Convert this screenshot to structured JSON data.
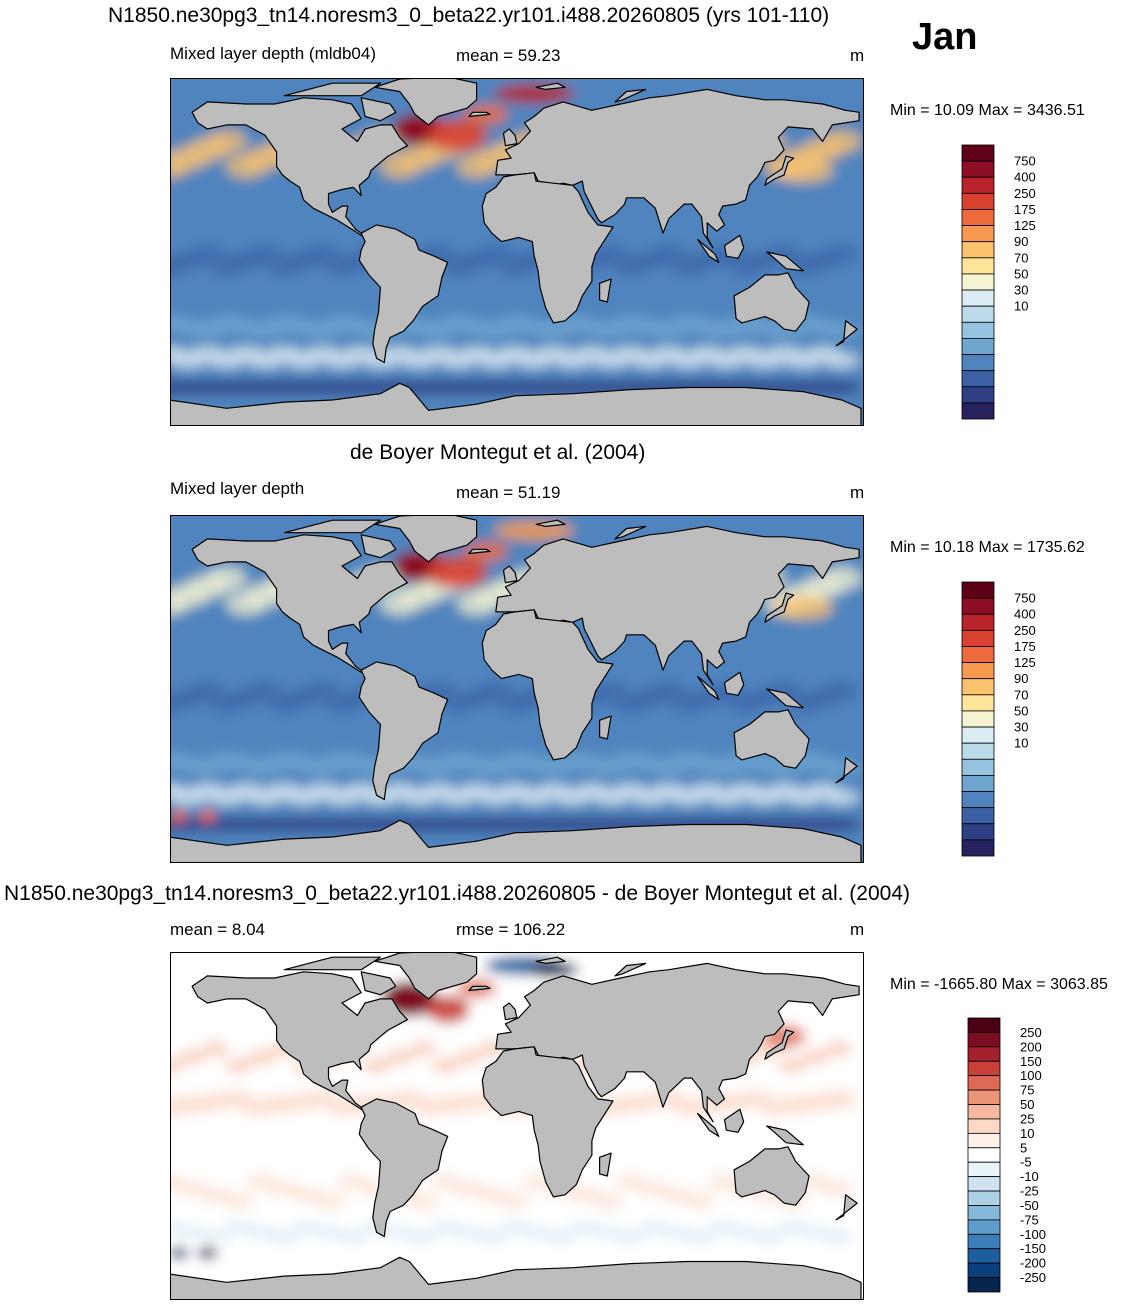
{
  "month": "Jan",
  "panels": [
    {
      "title": "N1850.ne30pg3_tn14.noresm3_0_beta22.yr101.i488.20260805 (yrs 101-110)",
      "left_label": "Mixed layer depth (mldb04)",
      "center_label": "mean =  59.23",
      "units": "m",
      "minmax": "Min =  10.09 Max = 3436.51",
      "colorbar_levels": [
        "750",
        "400",
        "250",
        "175",
        "125",
        "90",
        "70",
        "50",
        "30",
        "10"
      ]
    },
    {
      "title": "de Boyer Montegut et al. (2004)",
      "left_label": "Mixed layer depth",
      "center_label": "mean =  51.19",
      "units": "m",
      "minmax": "Min =  10.18 Max = 1735.62",
      "colorbar_levels": [
        "750",
        "400",
        "250",
        "175",
        "125",
        "90",
        "70",
        "50",
        "30",
        "10"
      ]
    },
    {
      "title": "N1850.ne30pg3_tn14.noresm3_0_beta22.yr101.i488.20260805 - de Boyer Montegut et al. (2004)",
      "left_label": "mean =   8.04",
      "center_label": "rmse = 106.22",
      "units": "m",
      "minmax": "Min = -1665.80 Max = 3063.85",
      "colorbar_levels": [
        "250",
        "200",
        "150",
        "100",
        "75",
        "50",
        "25",
        "10",
        "5",
        "-5",
        "-10",
        "-25",
        "-50",
        "-75",
        "-100",
        "-150",
        "-200",
        "-250"
      ]
    }
  ],
  "colors": {
    "land": "#bdbdbd",
    "seq_palette": [
      "#5e0016",
      "#8d0e24",
      "#b8242a",
      "#d8412f",
      "#ec6a3c",
      "#f79a4f",
      "#fcc36e",
      "#fee59a",
      "#f4f4d2",
      "#dcecf3",
      "#bcdbea",
      "#96c3df",
      "#6fa6d0",
      "#4f84be",
      "#3c60a6",
      "#2e3f86",
      "#25225f"
    ],
    "div_palette": [
      "#4d0013",
      "#7d0d22",
      "#a5202d",
      "#c9403b",
      "#de6a55",
      "#ec9478",
      "#f6b99f",
      "#fcd9c7",
      "#fff1ea",
      "#ffffff",
      "#eaf3f8",
      "#cfe3f0",
      "#acd0e6",
      "#86b9d9",
      "#5e9dcb",
      "#3b7fb9",
      "#1d5e9f",
      "#0b3f7c",
      "#07264d"
    ]
  }
}
